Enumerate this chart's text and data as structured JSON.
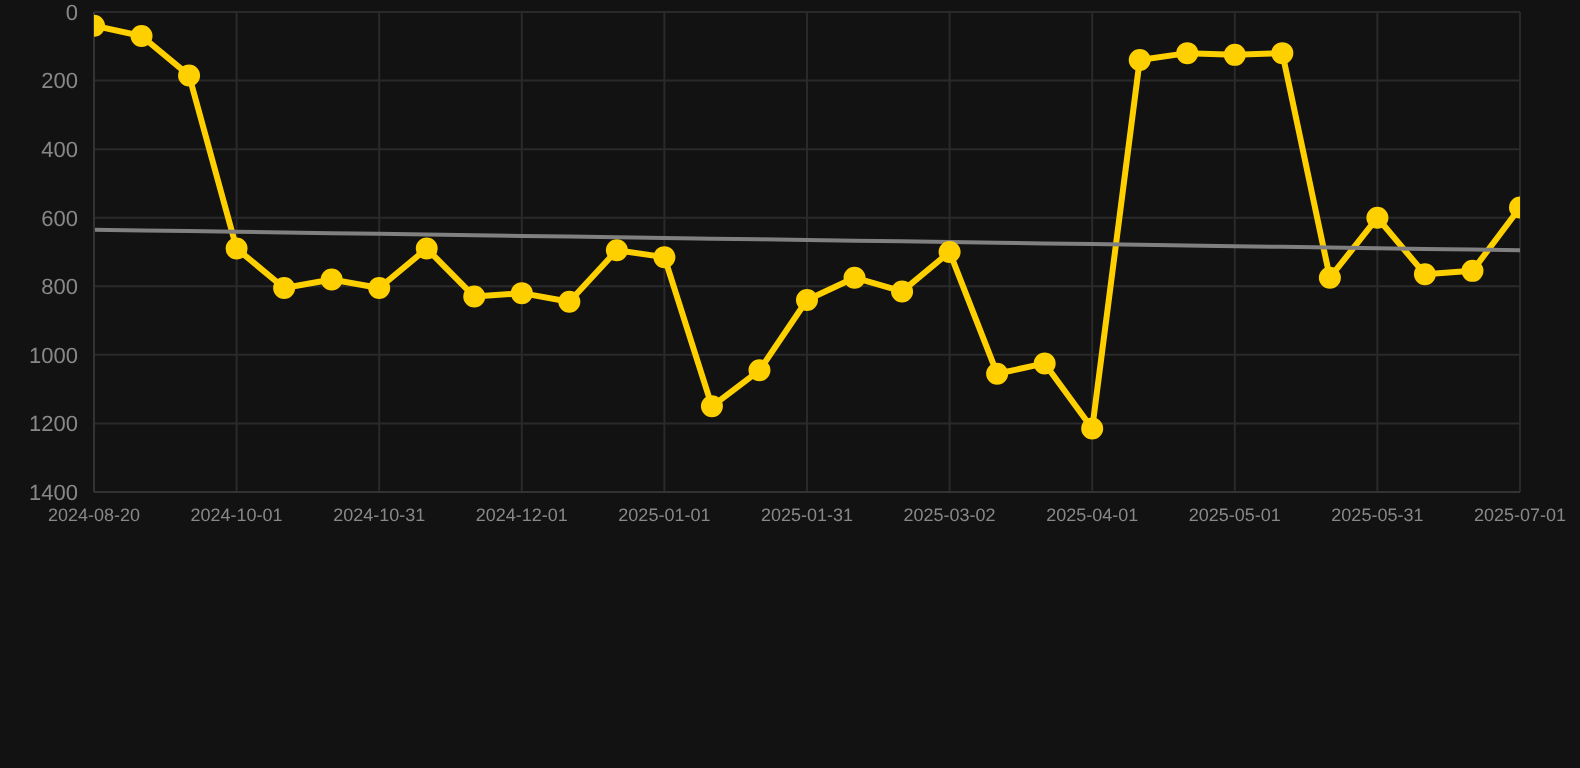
{
  "chart_data": {
    "type": "line",
    "categories": [
      "2024-08-20",
      null,
      null,
      "2024-10-01",
      null,
      null,
      "2024-10-31",
      null,
      null,
      "2024-12-01",
      null,
      null,
      "2025-01-01",
      null,
      null,
      "2025-01-31",
      null,
      null,
      "2025-03-02",
      null,
      null,
      "2025-04-01",
      null,
      null,
      "2025-05-01",
      null,
      null,
      "2025-05-31",
      null,
      null,
      "2025-07-01"
    ],
    "series": [
      {
        "color": "#ffd000",
        "marker": "circle",
        "values": [
          40,
          70,
          185,
          690,
          805,
          780,
          805,
          690,
          830,
          820,
          845,
          695,
          715,
          1150,
          1045,
          840,
          775,
          815,
          700,
          1055,
          1025,
          1215,
          140,
          120,
          125,
          120,
          775,
          600,
          765,
          755,
          570
        ]
      },
      {
        "type": "line",
        "color": "#808080",
        "marker": "none",
        "values": [
          635,
          637,
          639,
          641,
          643,
          645,
          647,
          649,
          651,
          653,
          655,
          657,
          659,
          661,
          663,
          665,
          667,
          669,
          671,
          673,
          675,
          677,
          679,
          681,
          683,
          685,
          687,
          689,
          691,
          693,
          695
        ]
      }
    ],
    "ylim": [
      1400,
      0
    ],
    "yticks": [
      0,
      200,
      400,
      600,
      800,
      1000,
      1200,
      1400
    ],
    "grid": true
  }
}
